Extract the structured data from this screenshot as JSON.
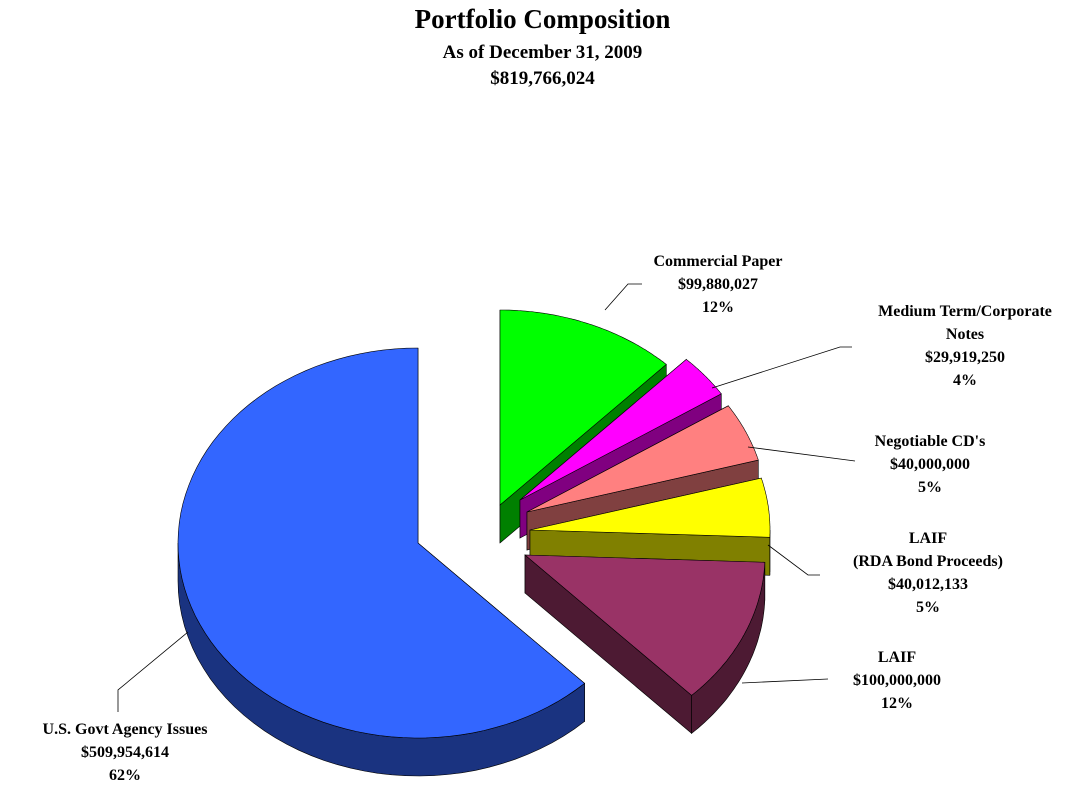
{
  "chart_data": {
    "type": "pie3d",
    "title": "Portfolio Composition",
    "subtitle": "As of December 31, 2009",
    "total": "$819,766,024",
    "categories": [
      "Commercial  Paper",
      "Medium Term/Corporate\nNotes",
      "Negotiable CD's",
      "LAIF\n(RDA Bond Proceeds)",
      "LAIF",
      "U.S. Govt Agency Issues"
    ],
    "values": [
      99880027,
      29919250,
      40000000,
      40012133,
      100000000,
      509954614
    ],
    "value_labels": [
      "$99,880,027",
      "$29,919,250",
      "$40,000,000",
      "$40,012,133",
      "$100,000,000",
      "$509,954,614"
    ],
    "percent_labels": [
      "12%",
      "4%",
      "5%",
      "5%",
      "12%",
      "62%"
    ],
    "colors": [
      "#00ff00",
      "#ff00ff",
      "#ff8080",
      "#ffff00",
      "#993366",
      "#3366ff"
    ]
  }
}
